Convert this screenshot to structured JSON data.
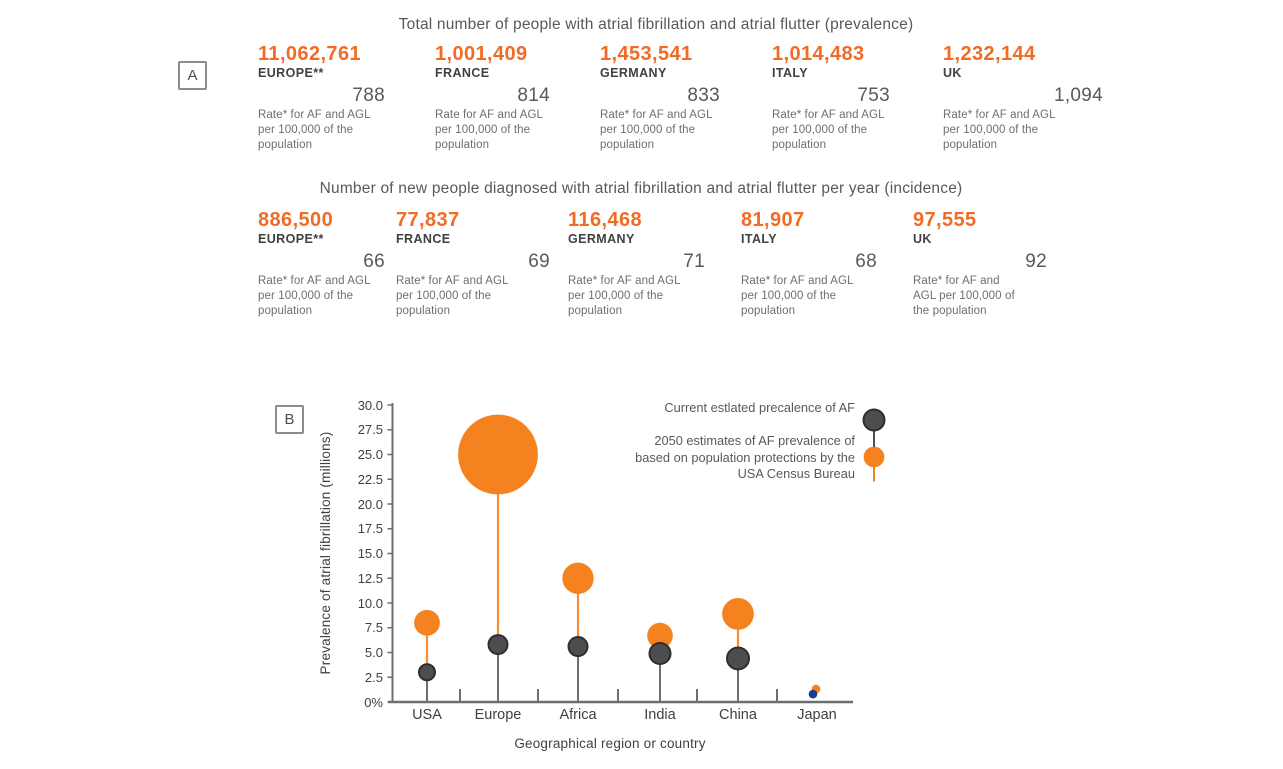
{
  "panel_a": {
    "label": "A",
    "prevalence": {
      "title": "Total number of people with atrial fibrillation and atrial flutter (prevalence)",
      "items": [
        {
          "value": "11,062,761",
          "region": "EUROPE**",
          "rate": "788",
          "note": "Rate* for AF and AGL\nper 100,000 of the\npopulation"
        },
        {
          "value": "1,001,409",
          "region": "FRANCE",
          "rate": "814",
          "note": "Rate for AF and AGL\nper 100,000 of the\npopulation"
        },
        {
          "value": "1,453,541",
          "region": "GERMANY",
          "rate": "833",
          "note": "Rate* for AF and AGL\nper 100,000 of the\npopulation"
        },
        {
          "value": "1,014,483",
          "region": "ITALY",
          "rate": "753",
          "note": "Rate* for AF and AGL\nper 100,000 of the\npopulation"
        },
        {
          "value": "1,232,144",
          "region": "UK",
          "rate": "1,094",
          "note": "Rate* for AF and AGL\nper 100,000 of the\npopulation"
        }
      ]
    },
    "incidence": {
      "title": "Number of new people diagnosed with atrial fibrillation and atrial flutter per year (incidence)",
      "items": [
        {
          "value": "886,500",
          "region": "EUROPE**",
          "rate": "66",
          "note": "Rate* for AF and AGL\nper 100,000 of the\npopulation"
        },
        {
          "value": "77,837",
          "region": "FRANCE",
          "rate": "69",
          "note": "Rate* for AF and AGL\nper 100,000 of the\npopulation"
        },
        {
          "value": "116,468",
          "region": "GERMANY",
          "rate": "71",
          "note": "Rate* for AF and AGL\nper 100,000 of the\npopulation"
        },
        {
          "value": "81,907",
          "region": "ITALY",
          "rate": "68",
          "note": "Rate* for AF and AGL\nper 100,000 of the\npopulation"
        },
        {
          "value": "97,555",
          "region": "UK",
          "rate": "92",
          "note": "Rate* for AF and\nAGL per 100,000 of\nthe population"
        }
      ]
    }
  },
  "panel_b": {
    "label": "B",
    "legend": {
      "current_label": "Current estlated precalence of AF",
      "future_label": "2050 estimates of AF prevalence of\nbased on population protections by the\nUSA Census Bureau"
    }
  },
  "colors": {
    "orange_text": "#f26b24",
    "bubble_orange": "#f5821f",
    "bubble_orange_rim": "#ed750a",
    "dot_gray": "#4d4d4f",
    "dot_gray_rim": "#2e2e30",
    "dot_navy": "#1b3c87",
    "stem_gray": "#6d6e71",
    "stem_orange": "#f58220",
    "axis_gray": "#6d6e71",
    "text_gray": "#58595b"
  },
  "chart_data": {
    "type": "scatter",
    "subtype": "bubble-lollipop",
    "categories": [
      "USA",
      "Europe",
      "Africa",
      "India",
      "China",
      "Japan"
    ],
    "series": [
      {
        "name": "Current estlated precalence of AF",
        "values": [
          3.0,
          5.8,
          5.6,
          4.9,
          4.4,
          0.8
        ],
        "radii": [
          8,
          9.5,
          9.5,
          10.5,
          11,
          4.3
        ]
      },
      {
        "name": "2050 estimates of AF prevalence of based on population protections by the USA Census Bureau",
        "values": [
          8.0,
          25.0,
          12.5,
          6.7,
          8.9,
          1.3
        ],
        "radii": [
          12.5,
          39.5,
          15.3,
          12.5,
          15.5,
          4
        ]
      }
    ],
    "xlabel": "Geographical region or country",
    "ylabel": "Prevalence of atrial fibrillation (millions)",
    "y_ticks": [
      "30.0",
      "27.5",
      "25.0",
      "22.5",
      "20.0",
      "17.5",
      "15.0",
      "12.5",
      "10.0",
      "7.5",
      "5.0",
      "2.5",
      "0%"
    ],
    "ylim": [
      0,
      30
    ],
    "grid": false,
    "legend_position": "top-right"
  }
}
